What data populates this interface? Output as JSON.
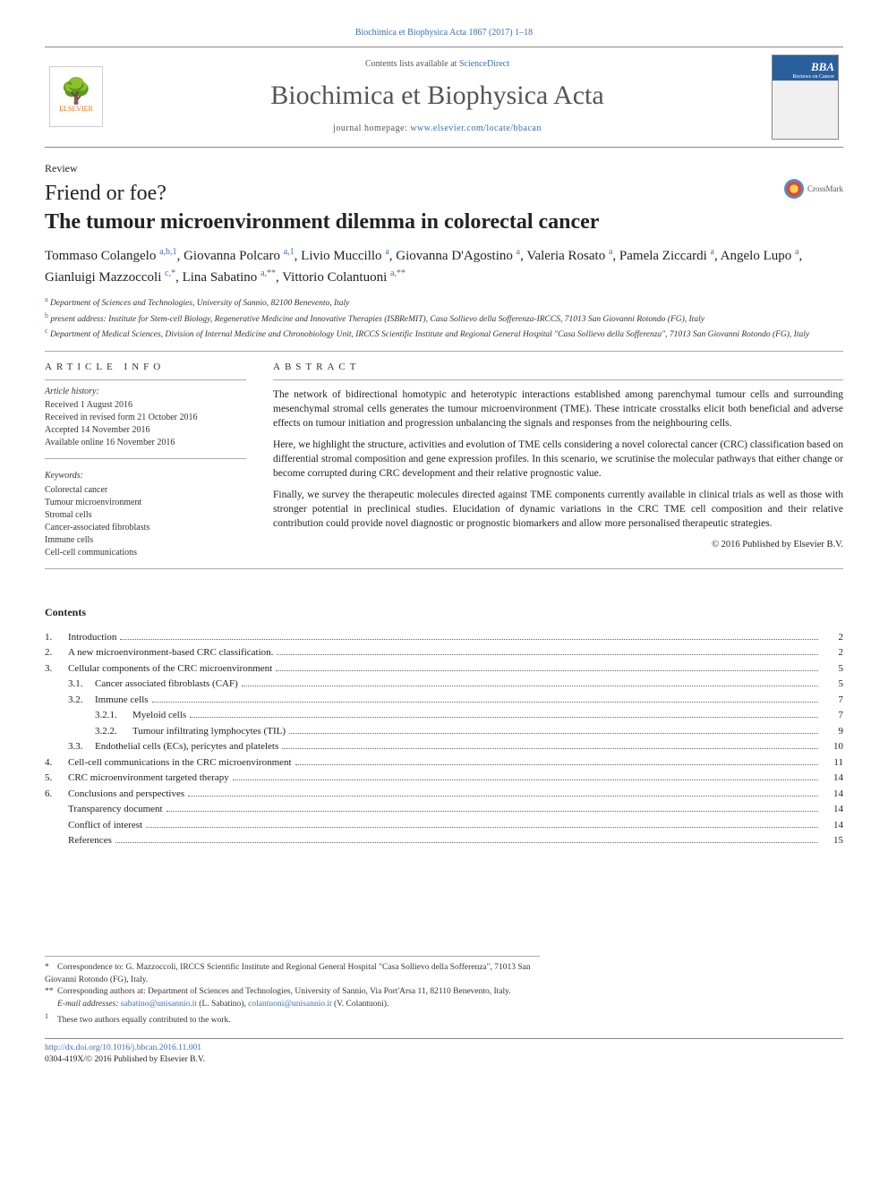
{
  "colors": {
    "link": "#3a6fb7",
    "text": "#222222",
    "rule": "#aaaaaa",
    "elsevier_orange": "#e2730f",
    "cover_blue": "#2a5f9e",
    "background": "#ffffff"
  },
  "typography": {
    "body_family": "Times New Roman / Georgia, serif",
    "journal_name_size_pt": 22,
    "title_size_pt": 18,
    "authors_size_pt": 11,
    "body_size_pt": 9,
    "footnote_size_pt": 7
  },
  "top_citation": "Biochimica et Biophysica Acta 1867 (2017) 1–18",
  "masthead": {
    "elsevier_label": "ELSEVIER",
    "contents_prefix": "Contents lists available at ",
    "contents_link": "ScienceDirect",
    "journal_name": "Biochimica et Biophysica Acta",
    "homepage_prefix": "journal homepage: ",
    "homepage_url": "www.elsevier.com/locate/bbacan",
    "cover_abbrev": "BBA",
    "cover_subtitle": "Reviews on Cancer"
  },
  "article_type": "Review",
  "title_line1": "Friend or foe?",
  "title_line2": "The tumour microenvironment dilemma in colorectal cancer",
  "crossmark_label": "CrossMark",
  "authors": [
    {
      "name": "Tommaso Colangelo",
      "affs": "a,b,1"
    },
    {
      "name": "Giovanna Polcaro",
      "affs": "a,1"
    },
    {
      "name": "Livio Muccillo",
      "affs": "a"
    },
    {
      "name": "Giovanna D'Agostino",
      "affs": "a"
    },
    {
      "name": "Valeria Rosato",
      "affs": "a"
    },
    {
      "name": "Pamela Ziccardi",
      "affs": "a"
    },
    {
      "name": "Angelo Lupo",
      "affs": "a"
    },
    {
      "name": "Gianluigi Mazzoccoli",
      "affs": "c,*"
    },
    {
      "name": "Lina Sabatino",
      "affs": "a,**"
    },
    {
      "name": "Vittorio Colantuoni",
      "affs": "a,**"
    }
  ],
  "affiliations": [
    {
      "label": "a",
      "text": "Department of Sciences and Technologies, University of Sannio, 82100 Benevento, Italy"
    },
    {
      "label": "b",
      "text": "present address: Institute for Stem-cell Biology, Regenerative Medicine and Innovative Therapies (ISBReMIT), Casa Sollievo della Sofferenza-IRCCS, 71013 San Giovanni Rotondo (FG), Italy"
    },
    {
      "label": "c",
      "text": "Department of Medical Sciences, Division of Internal Medicine and Chronobiology Unit, IRCCS Scientific Institute and Regional General Hospital \"Casa Sollievo della Sofferenza\", 71013 San Giovanni Rotondo (FG), Italy"
    }
  ],
  "info_heading": "article info",
  "abstract_heading": "abstract",
  "history_label": "Article history:",
  "history": [
    "Received 1 August 2016",
    "Received in revised form 21 October 2016",
    "Accepted 14 November 2016",
    "Available online 16 November 2016"
  ],
  "keywords_label": "Keywords:",
  "keywords": [
    "Colorectal cancer",
    "Tumour microenvironment",
    "Stromal cells",
    "Cancer-associated fibroblasts",
    "Immune cells",
    "Cell-cell communications"
  ],
  "abstract_paragraphs": [
    "The network of bidirectional homotypic and heterotypic interactions established among parenchymal tumour cells and surrounding mesenchymal stromal cells generates the tumour microenvironment (TME). These intricate crosstalks elicit both beneficial and adverse effects on tumour initiation and progression unbalancing the signals and responses from the neighbouring cells.",
    "Here, we highlight the structure, activities and evolution of TME cells considering a novel colorectal cancer (CRC) classification based on differential stromal composition and gene expression profiles. In this scenario, we scrutinise the molecular pathways that either change or become corrupted during CRC development and their relative prognostic value.",
    "Finally, we survey the therapeutic molecules directed against TME components currently available in clinical trials as well as those with stronger potential in preclinical studies. Elucidation of dynamic variations in the CRC TME cell composition and their relative contribution could provide novel diagnostic or prognostic biomarkers and allow more personalised therapeutic strategies."
  ],
  "copyright": "© 2016 Published by Elsevier B.V.",
  "contents_heading": "Contents",
  "toc": [
    {
      "num": "1.",
      "label": "Introduction",
      "page": "2",
      "level": 0
    },
    {
      "num": "2.",
      "label": "A new microenvironment-based CRC classification.",
      "page": "2",
      "level": 0
    },
    {
      "num": "3.",
      "label": "Cellular components of the CRC microenvironment",
      "page": "5",
      "level": 0
    },
    {
      "num": "3.1.",
      "label": "Cancer associated fibroblasts (CAF)",
      "page": "5",
      "level": 1
    },
    {
      "num": "3.2.",
      "label": "Immune cells",
      "page": "7",
      "level": 1
    },
    {
      "num": "3.2.1.",
      "label": "Myeloid cells",
      "page": "7",
      "level": 2
    },
    {
      "num": "3.2.2.",
      "label": "Tumour infiltrating lymphocytes (TIL)",
      "page": "9",
      "level": 2
    },
    {
      "num": "3.3.",
      "label": "Endothelial cells (ECs), pericytes and platelets",
      "page": "10",
      "level": 1
    },
    {
      "num": "4.",
      "label": "Cell-cell communications in the CRC microenvironment",
      "page": "11",
      "level": 0
    },
    {
      "num": "5.",
      "label": "CRC microenvironment targeted therapy",
      "page": "14",
      "level": 0
    },
    {
      "num": "6.",
      "label": "Conclusions and perspectives",
      "page": "14",
      "level": 0
    },
    {
      "num": "",
      "label": "Transparency document",
      "page": "14",
      "level": 0
    },
    {
      "num": "",
      "label": "Conflict of interest",
      "page": "14",
      "level": 0
    },
    {
      "num": "",
      "label": "References",
      "page": "15",
      "level": 0
    }
  ],
  "footnotes": {
    "star1": "Correspondence to: G. Mazzoccoli, IRCCS Scientific Institute and Regional General Hospital \"Casa Sollievo della Sofferenza\", 71013 San Giovanni Rotondo (FG), Italy.",
    "star2": "Corresponding authors at: Department of Sciences and Technologies, University of Sannio, Via Port'Arsa 11, 82110 Benevento, Italy.",
    "emails_label": "E-mail addresses:",
    "emails": [
      {
        "addr": "sabatino@unisannio.it",
        "who": "(L. Sabatino)"
      },
      {
        "addr": "colantuoni@unisannio.it",
        "who": "(V. Colantuoni)."
      }
    ],
    "note1": "These two authors equally contributed to the work."
  },
  "bottom": {
    "doi": "http://dx.doi.org/10.1016/j.bbcan.2016.11.001",
    "issn_line": "0304-419X/© 2016 Published by Elsevier B.V."
  }
}
